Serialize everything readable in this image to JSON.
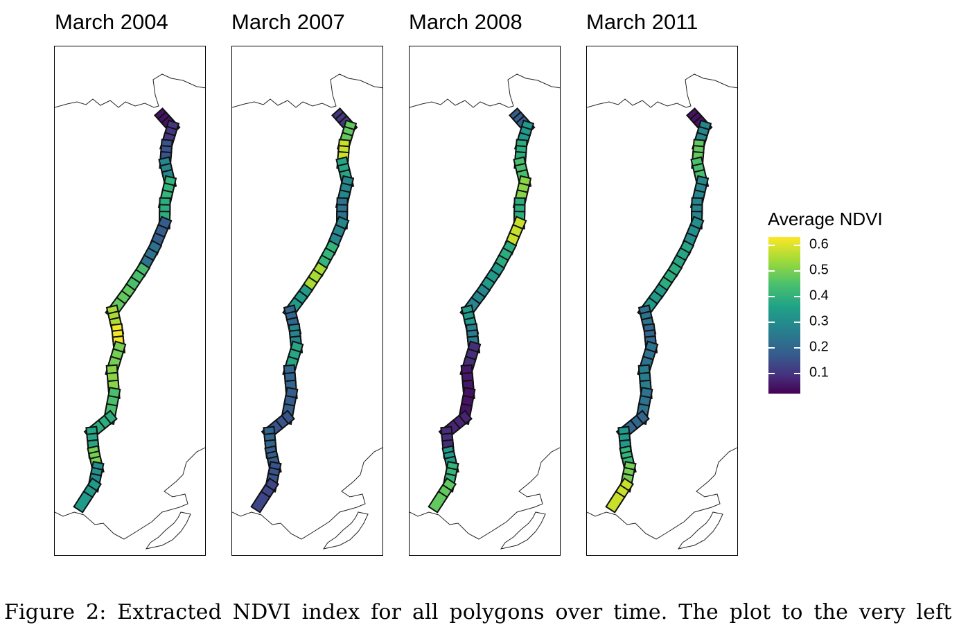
{
  "figure": {
    "panels": [
      {
        "title": "March 2004",
        "ndvi": [
          0.05,
          0.12,
          0.18,
          0.3,
          0.42,
          0.4,
          0.2,
          0.25,
          0.45,
          0.48,
          0.55,
          0.62,
          0.5,
          0.52,
          0.45,
          0.4,
          0.38,
          0.5,
          0.32,
          0.35
        ]
      },
      {
        "title": "March 2007",
        "ndvi": [
          0.12,
          0.48,
          0.58,
          0.38,
          0.3,
          0.25,
          0.3,
          0.42,
          0.55,
          0.35,
          0.22,
          0.3,
          0.38,
          0.22,
          0.2,
          0.18,
          0.22,
          0.2,
          0.18,
          0.15
        ]
      },
      {
        "title": "March 2008",
        "ndvi": [
          0.2,
          0.35,
          0.4,
          0.45,
          0.52,
          0.4,
          0.58,
          0.4,
          0.35,
          0.3,
          0.35,
          0.28,
          0.1,
          0.06,
          0.05,
          0.08,
          0.1,
          0.35,
          0.42,
          0.48
        ]
      },
      {
        "title": "March 2011",
        "ndvi": [
          0.05,
          0.3,
          0.48,
          0.45,
          0.3,
          0.3,
          0.32,
          0.38,
          0.4,
          0.35,
          0.25,
          0.22,
          0.25,
          0.28,
          0.25,
          0.22,
          0.35,
          0.42,
          0.5,
          0.58
        ]
      }
    ],
    "legend": {
      "title": "Average NDVI",
      "ticks": [
        "0.6",
        "0.5",
        "0.4",
        "0.3",
        "0.2",
        "0.1"
      ],
      "tick_values": [
        0.6,
        0.5,
        0.4,
        0.3,
        0.2,
        0.1
      ],
      "range": [
        0.02,
        0.63
      ],
      "palette": "viridis"
    },
    "caption": "Figure 2: Extracted NDVI index for all polygons over time. The plot to the very left"
  }
}
